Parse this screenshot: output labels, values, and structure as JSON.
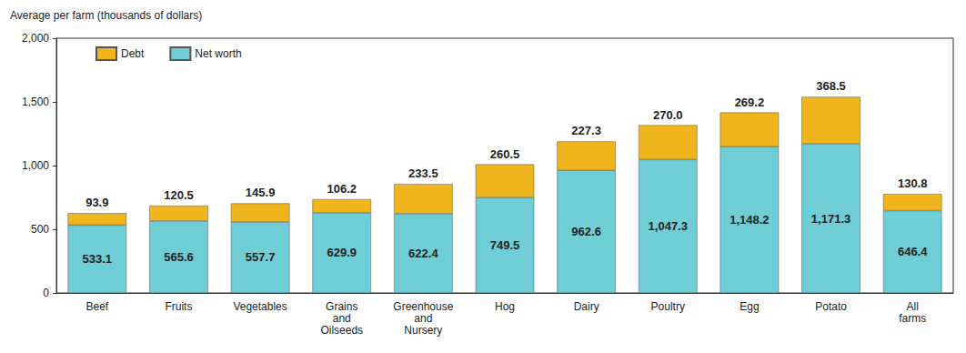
{
  "chart_data": {
    "type": "bar",
    "stacked": true,
    "ylabel": "Average per farm (thousands of dollars)",
    "categories": [
      "Beef",
      "Fruits",
      "Vegetables",
      "Grains and Oilseeds",
      "Greenhouse and Nursery",
      "Hog",
      "Dairy",
      "Poultry",
      "Egg",
      "Potato",
      "All farms"
    ],
    "series": [
      {
        "name": "Debt",
        "color": "#f0b41c",
        "values": [
          93.9,
          120.5,
          145.9,
          106.2,
          233.5,
          260.5,
          227.3,
          270.0,
          269.2,
          368.5,
          130.8
        ],
        "value_labels": [
          "93.9",
          "120.5",
          "145.9",
          "106.2",
          "233.5",
          "260.5",
          "227.3",
          "270.0",
          "269.2",
          "368.5",
          "130.8"
        ]
      },
      {
        "name": "Net worth",
        "color": "#6fcdd6",
        "values": [
          533.1,
          565.6,
          557.7,
          629.9,
          622.4,
          749.5,
          962.6,
          1047.3,
          1148.2,
          1171.3,
          646.4
        ],
        "value_labels": [
          "533.1",
          "565.6",
          "557.7",
          "629.9",
          "622.4",
          "749.5",
          "962.6",
          "1,047.3",
          "1,148.2",
          "1,171.3",
          "646.4"
        ]
      }
    ],
    "ylim": [
      0,
      2000
    ],
    "yticks": [
      0,
      500,
      {
        "value": 1000,
        "label": "1,000"
      },
      {
        "value": 1500,
        "label": "1,500"
      },
      {
        "value": 2000,
        "label": "2,000"
      }
    ],
    "data_labels": true,
    "legend": "upper left",
    "grid": false
  }
}
